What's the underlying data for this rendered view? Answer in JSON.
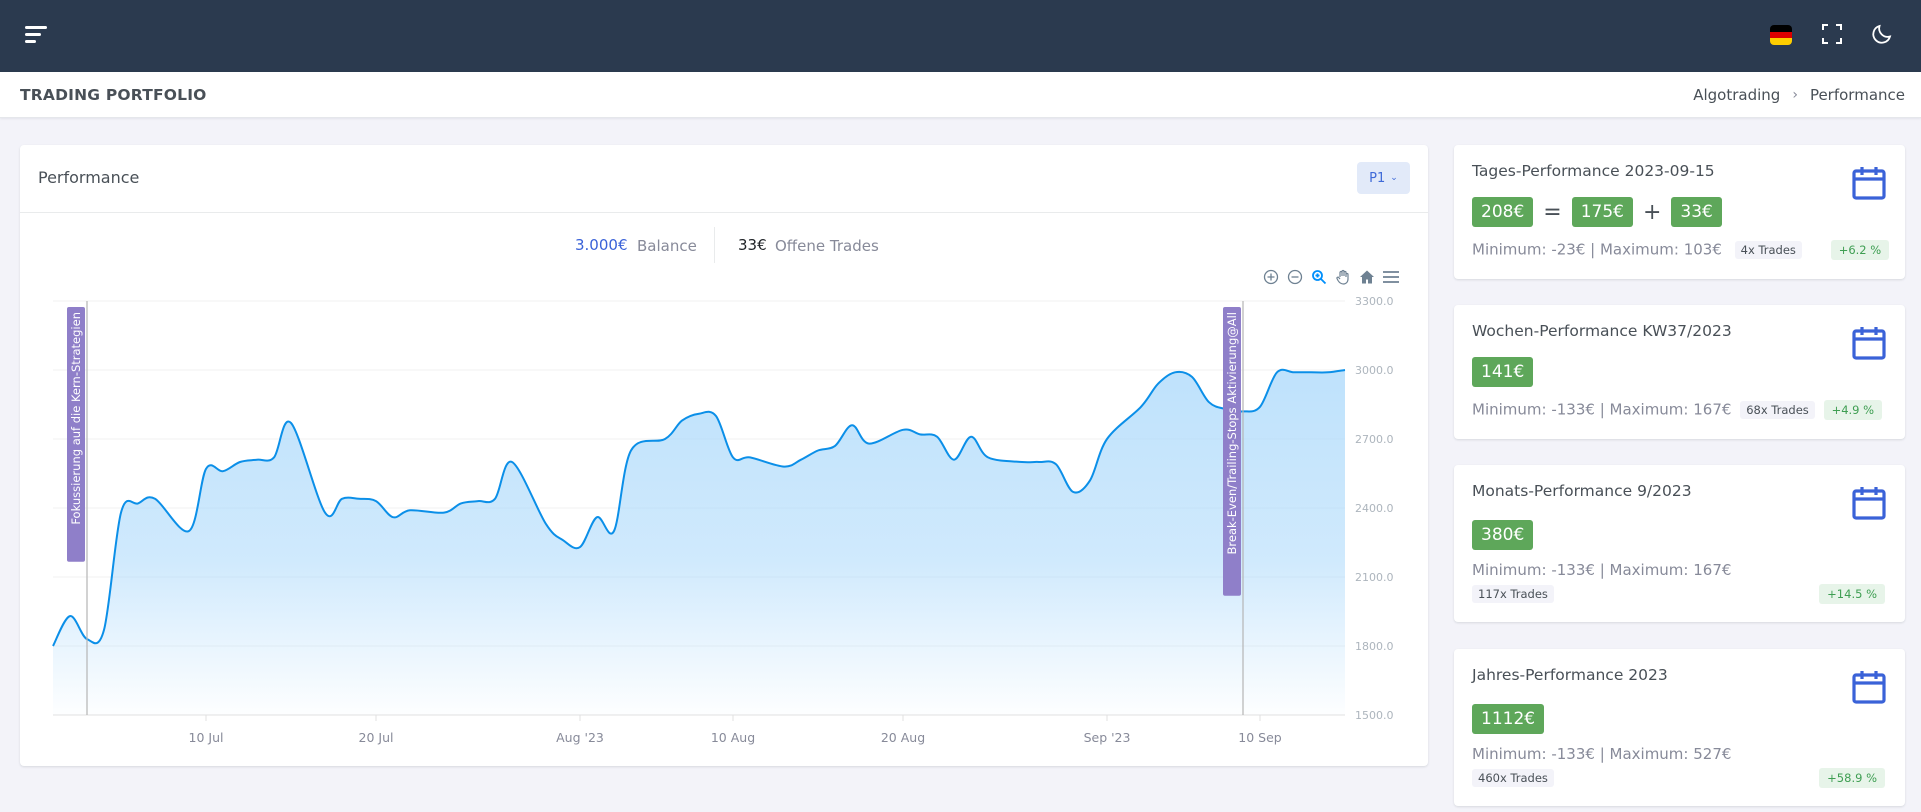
{
  "header": {
    "menu_icon": "hamburger-icon",
    "flag_icon": "german-flag-icon",
    "fullscreen_icon": "fullscreen-icon",
    "theme_icon": "moon-icon",
    "flag_colors": [
      "#000000",
      "#dd0000",
      "#ffce00"
    ]
  },
  "page": {
    "title": "TRADING PORTFOLIO",
    "breadcrumb": [
      "Algotrading",
      "Performance"
    ],
    "breadcrumb_separator": "›"
  },
  "performance": {
    "title": "Performance",
    "period_button": "P1",
    "balance_value": "3.000€",
    "balance_label": "Balance",
    "open_trades_value": "33€",
    "open_trades_label": "Offene Trades",
    "toolbar_icons": [
      "zoom-in-icon",
      "zoom-out-icon",
      "zoom-select-icon",
      "pan-icon",
      "home-icon",
      "menu-icon"
    ]
  },
  "chart_data": {
    "type": "area",
    "x_dates": [
      "2023-07-01",
      "2023-07-02",
      "2023-07-03",
      "2023-07-04",
      "2023-07-05",
      "2023-07-06",
      "2023-07-07",
      "2023-07-09",
      "2023-07-10",
      "2023-07-11",
      "2023-07-12",
      "2023-07-13",
      "2023-07-14",
      "2023-07-15",
      "2023-07-17",
      "2023-07-18",
      "2023-07-19",
      "2023-07-20",
      "2023-07-21",
      "2023-07-22",
      "2023-07-24",
      "2023-07-25",
      "2023-07-26",
      "2023-07-27",
      "2023-07-28",
      "2023-07-30",
      "2023-07-31",
      "2023-08-01",
      "2023-08-02",
      "2023-08-03",
      "2023-08-04",
      "2023-08-06",
      "2023-08-07",
      "2023-08-08",
      "2023-08-09",
      "2023-08-10",
      "2023-08-11",
      "2023-08-13",
      "2023-08-14",
      "2023-08-15",
      "2023-08-16",
      "2023-08-17",
      "2023-08-18",
      "2023-08-20",
      "2023-08-21",
      "2023-08-22",
      "2023-08-23",
      "2023-08-24",
      "2023-08-25",
      "2023-08-27",
      "2023-08-28",
      "2023-08-29",
      "2023-08-30",
      "2023-08-31",
      "2023-09-01",
      "2023-09-03",
      "2023-09-04",
      "2023-09-05",
      "2023-09-06",
      "2023-09-07",
      "2023-09-08",
      "2023-09-09",
      "2023-09-10",
      "2023-09-11",
      "2023-09-12",
      "2023-09-13",
      "2023-09-14",
      "2023-09-15"
    ],
    "values": [
      1800,
      1930,
      1830,
      1870,
      2380,
      2420,
      2440,
      2300,
      2570,
      2560,
      2600,
      2610,
      2620,
      2770,
      2380,
      2440,
      2440,
      2430,
      2360,
      2390,
      2380,
      2420,
      2430,
      2440,
      2600,
      2330,
      2260,
      2230,
      2360,
      2300,
      2650,
      2700,
      2780,
      2810,
      2800,
      2620,
      2620,
      2580,
      2610,
      2650,
      2670,
      2760,
      2680,
      2740,
      2720,
      2710,
      2610,
      2710,
      2620,
      2600,
      2600,
      2590,
      2470,
      2520,
      2700,
      2840,
      2940,
      2990,
      2970,
      2860,
      2830,
      2820,
      2840,
      2990,
      2990,
      2990,
      2990,
      3000
    ],
    "ylim": [
      1500,
      3300
    ],
    "y_ticks": [
      "3300.0",
      "3000.0",
      "2700.0",
      "2400.0",
      "2100.0",
      "1800.0",
      "1500.0"
    ],
    "x_tick_labels": [
      "10 Jul",
      "20 Jul",
      "Aug '23",
      "10 Aug",
      "20 Aug",
      "Sep '23",
      "10 Sep"
    ],
    "x_tick_dates": [
      "2023-07-10",
      "2023-07-20",
      "2023-08-01",
      "2023-08-10",
      "2023-08-20",
      "2023-09-01",
      "2023-09-10"
    ],
    "annotations": [
      {
        "date": "2023-07-03",
        "text": "Fokussierung auf die Kern-Strategien"
      },
      {
        "date": "2023-09-09",
        "text": "Break-Even/Trailing-Stops Aktivierung@All"
      }
    ],
    "line_color": "#0b8fe8",
    "fill_color": "#a9d8fb",
    "annotation_color": "#8f7fc9",
    "grid": true,
    "legend": "none"
  },
  "cards": [
    {
      "title": "Tages-Performance 2023-09-15",
      "pills": [
        "208€",
        "175€",
        "33€"
      ],
      "ops": [
        "=",
        "+"
      ],
      "minmax": "Minimum: -23€ | Maximum: 103€",
      "trades": "4x Trades",
      "pct": "+6.2 %"
    },
    {
      "title": "Wochen-Performance KW37/2023",
      "pills": [
        "141€"
      ],
      "minmax": "Minimum: -133€ | Maximum: 167€",
      "trades": "68x Trades",
      "pct": "+4.9 %"
    },
    {
      "title": "Monats-Performance 9/2023",
      "pills": [
        "380€"
      ],
      "minmax": "Minimum: -133€ | Maximum: 167€",
      "trades": "117x Trades",
      "pct": "+14.5 %"
    },
    {
      "title": "Jahres-Performance 2023",
      "pills": [
        "1112€"
      ],
      "minmax": "Minimum: -133€ | Maximum: 527€",
      "trades": "460x Trades",
      "pct": "+58.9 %"
    }
  ],
  "colors": {
    "topbar": "#2b3a4f",
    "accent": "#3a62d8",
    "success_pill": "#5ea75a",
    "calendar_icon": "#3a62d8"
  }
}
